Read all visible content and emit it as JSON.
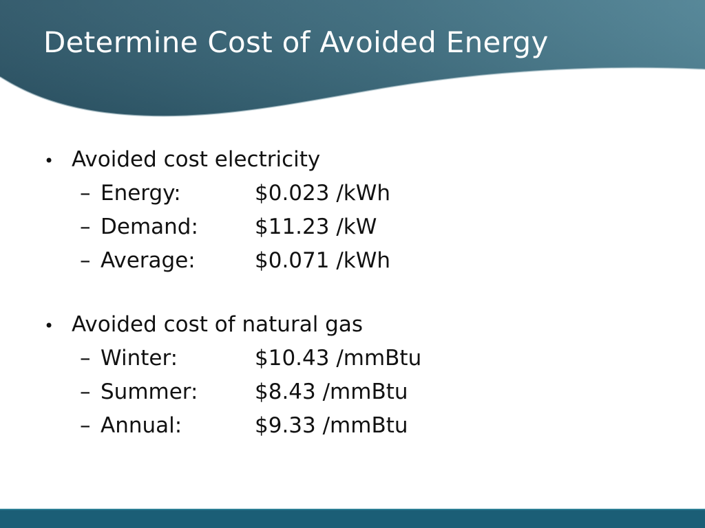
{
  "slide": {
    "title": "Determine Cost of Avoided Energy",
    "colors": {
      "header_dark": "#2c5567",
      "header_light": "#4f8294",
      "footer": "#1b5e76",
      "text": "#111111"
    },
    "sections": [
      {
        "bullet_icon": "bullet-icon",
        "heading": "Avoided cost electricity",
        "items": [
          {
            "label": "Energy:",
            "value": "$0.023 /kWh"
          },
          {
            "label": "Demand:",
            "value": "$11.23 /kW"
          },
          {
            "label": "Average:",
            "value": "$0.071 /kWh"
          }
        ]
      },
      {
        "bullet_icon": "bullet-icon",
        "heading": "Avoided cost of natural gas",
        "items": [
          {
            "label": "Winter:",
            "value": "$10.43 /mmBtu"
          },
          {
            "label": "Summer:",
            "value": "$8.43 /mmBtu"
          },
          {
            "label": "Annual:",
            "value": "$9.33 /mmBtu"
          }
        ]
      }
    ]
  }
}
